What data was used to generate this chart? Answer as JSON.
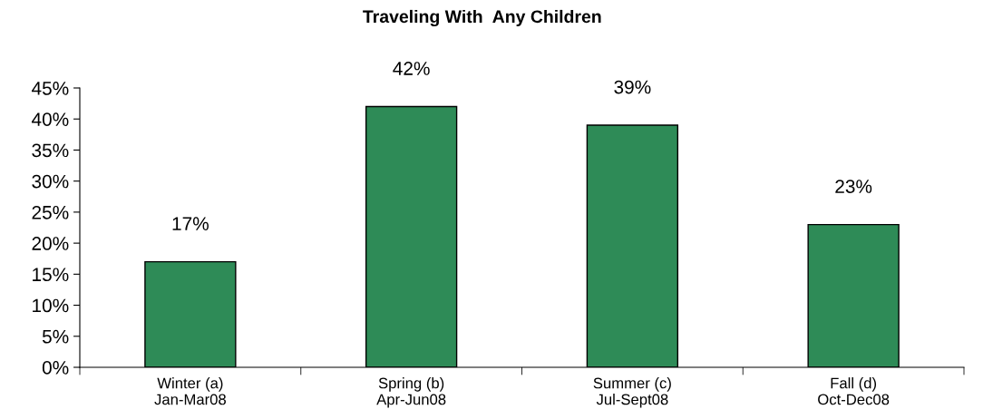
{
  "chart_data": {
    "type": "bar",
    "title": "Traveling With  Any Children",
    "categories": [
      "Winter (a)\nJan-Mar08",
      "Spring (b)\nApr-Jun08",
      "Summer (c)\nJul-Sept08",
      "Fall (d)\nOct-Dec08"
    ],
    "values": [
      17,
      42,
      39,
      23
    ],
    "value_labels": [
      "17%",
      "42%",
      "39%",
      "23%"
    ],
    "color": "#2e8b57",
    "ylim": [
      0,
      45
    ],
    "yticks": [
      {
        "value": 0,
        "label": "0%"
      },
      {
        "value": 5,
        "label": "5%"
      },
      {
        "value": 10,
        "label": "10%"
      },
      {
        "value": 15,
        "label": "15%"
      },
      {
        "value": 20,
        "label": "20%"
      },
      {
        "value": 25,
        "label": "25%"
      },
      {
        "value": 30,
        "label": "30%"
      },
      {
        "value": 35,
        "label": "35%"
      },
      {
        "value": 40,
        "label": "40%"
      },
      {
        "value": 45,
        "label": "45%"
      }
    ],
    "grid": false,
    "legend": false
  }
}
